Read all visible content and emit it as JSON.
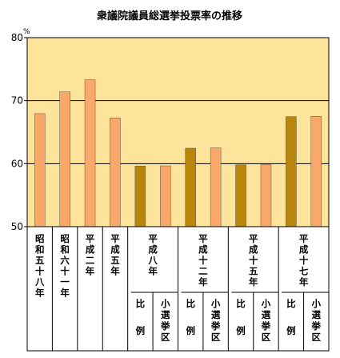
{
  "chart_data": {
    "type": "bar",
    "title": "衆議院議員総選挙投票率の推移",
    "unit": "%",
    "ylim": [
      50,
      80
    ],
    "yticks": [
      "50",
      "60",
      "70",
      "80"
    ],
    "grid": true,
    "groups": [
      {
        "label": "昭和五十八年",
        "bars": [
          {
            "kind": "",
            "value": 67.94
          }
        ]
      },
      {
        "label": "昭和六十一年",
        "bars": [
          {
            "kind": "",
            "value": 71.4
          }
        ]
      },
      {
        "label": "平成二年",
        "bars": [
          {
            "kind": "",
            "value": 73.31
          }
        ]
      },
      {
        "label": "平成五年",
        "bars": [
          {
            "kind": "",
            "value": 67.26
          }
        ]
      },
      {
        "label": "平成八年",
        "bars": [
          {
            "kind": "比例",
            "value": 59.62
          },
          {
            "kind": "小選挙区",
            "value": 59.65
          }
        ]
      },
      {
        "label": "平成十二年",
        "bars": [
          {
            "kind": "比例",
            "value": 62.45
          },
          {
            "kind": "小選挙区",
            "value": 62.49
          }
        ]
      },
      {
        "label": "平成十五年",
        "bars": [
          {
            "kind": "比例",
            "value": 59.81
          },
          {
            "kind": "小選挙区",
            "value": 59.86
          }
        ]
      },
      {
        "label": "平成十七年",
        "bars": [
          {
            "kind": "比例",
            "value": 67.46
          },
          {
            "kind": "小選挙区",
            "value": 67.51
          }
        ]
      }
    ],
    "colors": {
      "plot_background": "#fde49a",
      "bar_orange": "#f9a86a",
      "bar_brown": "#b8860b",
      "gridline": "#000000"
    }
  }
}
